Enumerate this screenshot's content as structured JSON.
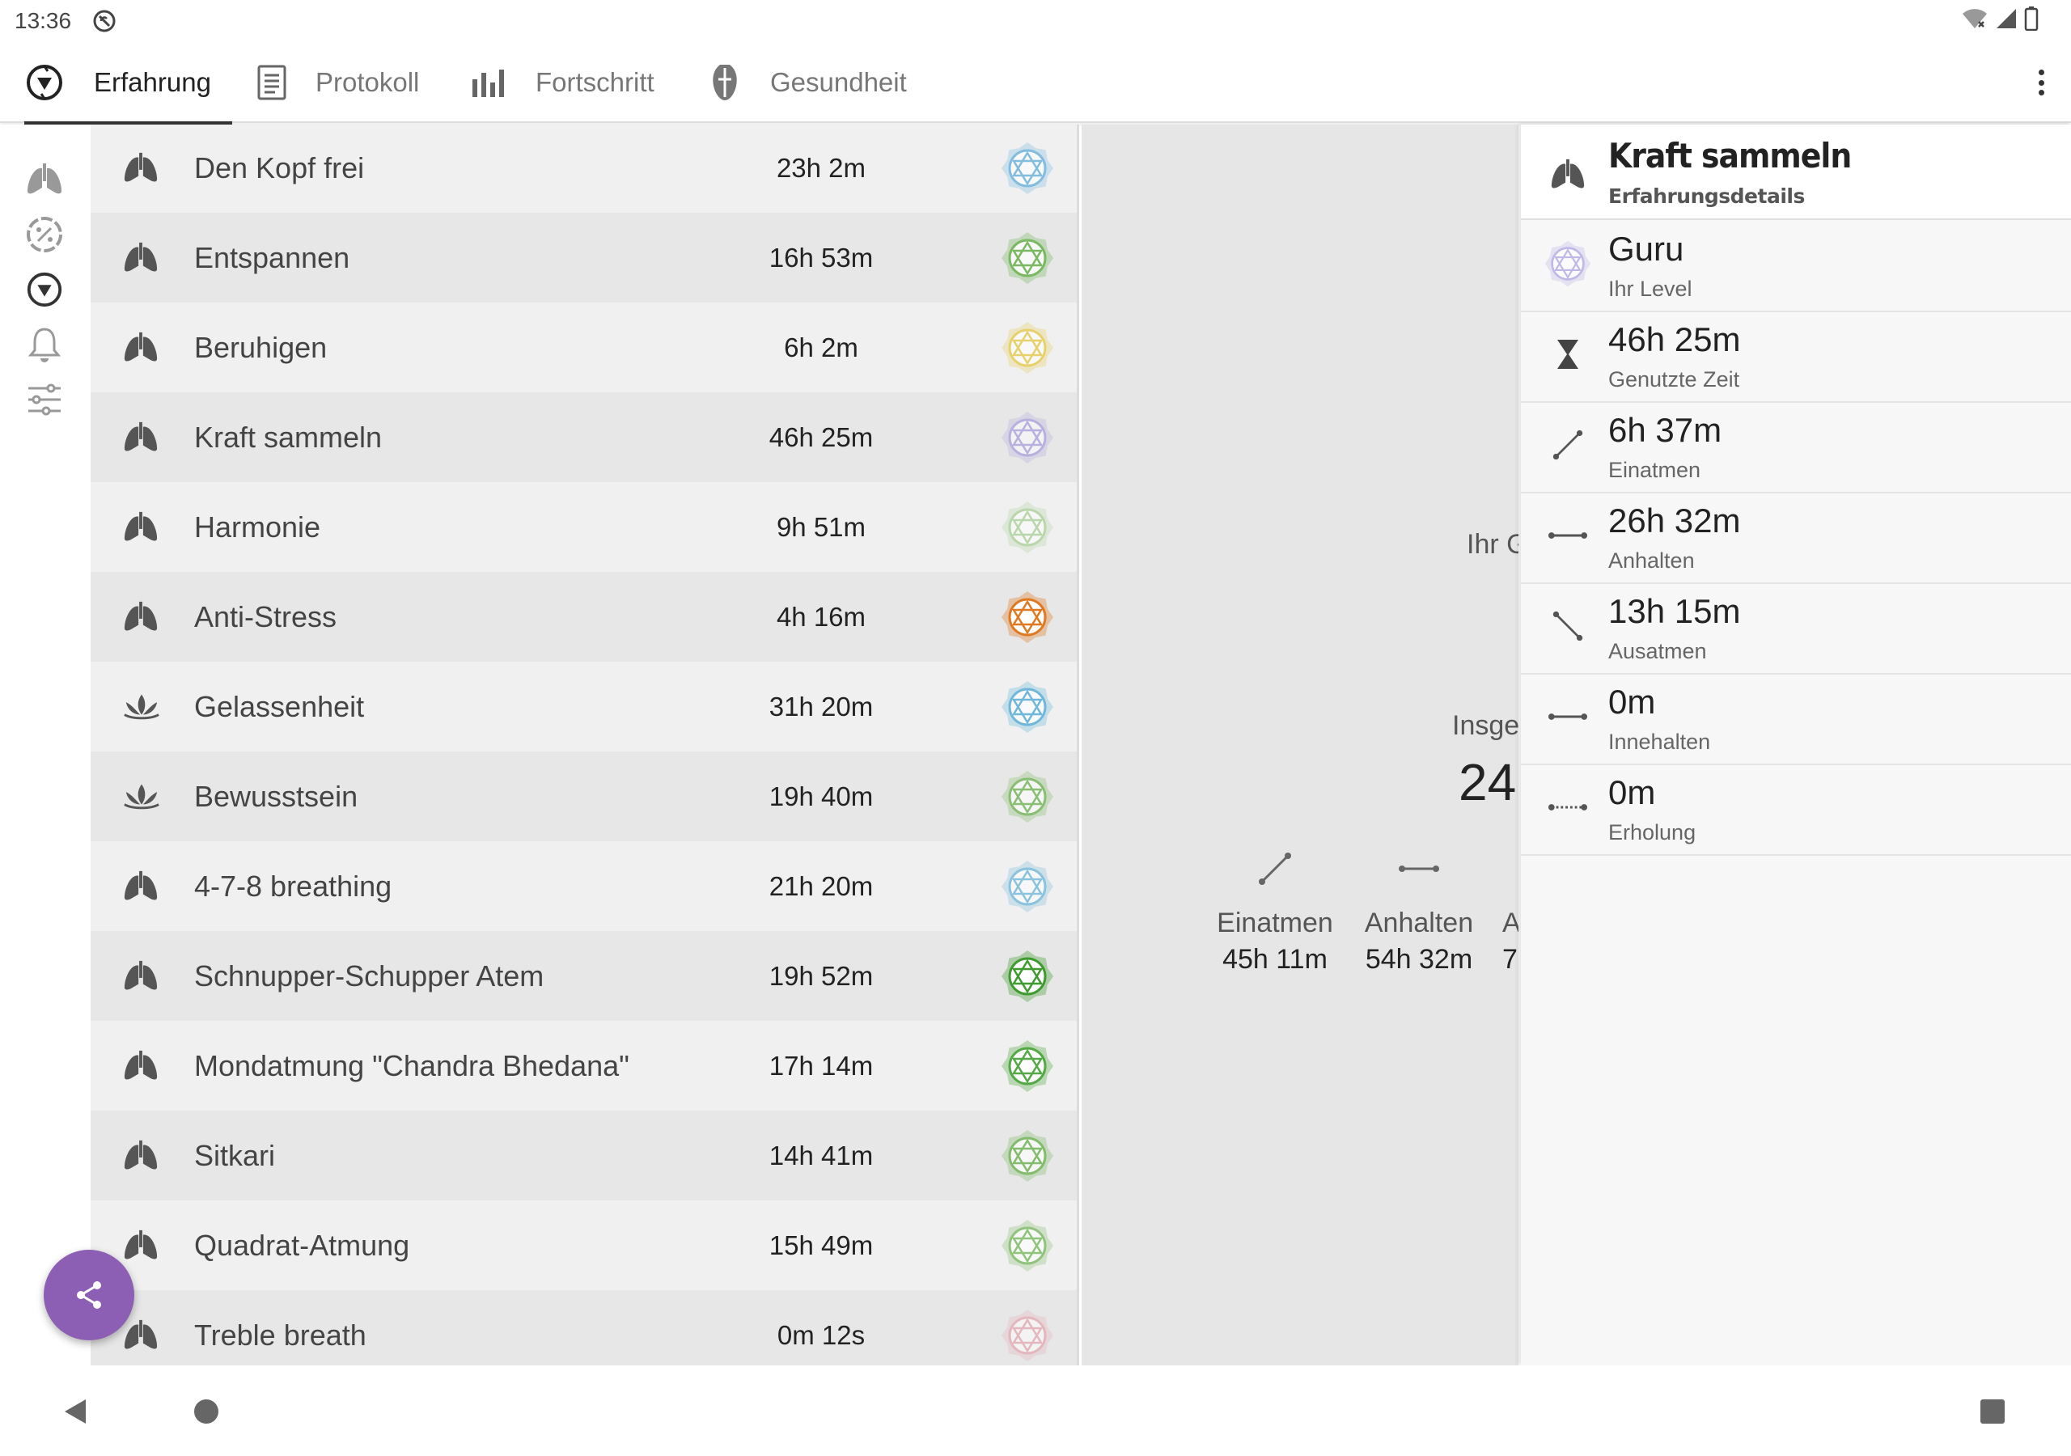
{
  "status": {
    "time": "13:36"
  },
  "tabs": [
    {
      "label": "Erfahrung",
      "icon": "chakra-target-icon",
      "active": true
    },
    {
      "label": "Protokoll",
      "icon": "list-icon",
      "active": false
    },
    {
      "label": "Fortschritt",
      "icon": "bar-chart-icon",
      "active": false
    },
    {
      "label": "Gesundheit",
      "icon": "health-icon",
      "active": false
    }
  ],
  "rail": [
    "lungs-icon",
    "percent-icon",
    "chakra-target-icon",
    "bell-icon",
    "sliders-icon"
  ],
  "list": [
    {
      "name": "Den Kopf frei",
      "duration": "23h 2m",
      "icon": "lungs-icon",
      "badge_color": "#4aa3d6",
      "badge_fill": 0.55
    },
    {
      "name": "Entspannen",
      "duration": "16h 53m",
      "icon": "lungs-icon",
      "badge_color": "#5aaa3a",
      "badge_fill": 0.7
    },
    {
      "name": "Beruhigen",
      "duration": "6h 2m",
      "icon": "lungs-icon",
      "badge_color": "#e2c020",
      "badge_fill": 0.5
    },
    {
      "name": "Kraft sammeln",
      "duration": "46h 25m",
      "icon": "lungs-icon",
      "badge_color": "#8d7cd8",
      "badge_fill": 0.35
    },
    {
      "name": "Harmonie",
      "duration": "9h 51m",
      "icon": "lungs-icon",
      "badge_color": "#7cba62",
      "badge_fill": 0.3
    },
    {
      "name": "Anti-Stress",
      "duration": "4h 16m",
      "icon": "lungs-icon",
      "badge_color": "#e07a22",
      "badge_fill": 1
    },
    {
      "name": "Gelassenheit",
      "duration": "31h 20m",
      "icon": "lotus-icon",
      "badge_color": "#3aa0d0",
      "badge_fill": 0.6
    },
    {
      "name": "Bewusstsein",
      "duration": "19h 40m",
      "icon": "lotus-icon",
      "badge_color": "#5aaa3a",
      "badge_fill": 0.55
    },
    {
      "name": "4-7-8 breathing",
      "duration": "21h 20m",
      "icon": "lungs-icon",
      "badge_color": "#3aa0d0",
      "badge_fill": 0.4
    },
    {
      "name": "Schnupper-Schupper Atem",
      "duration": "19h 52m",
      "icon": "lungs-icon",
      "badge_color": "#3f9a2f",
      "badge_fill": 1
    },
    {
      "name": "Mondatmung \"Chandra Bhedana\"",
      "duration": "17h 14m",
      "icon": "lungs-icon",
      "badge_color": "#4aa33a",
      "badge_fill": 0.9
    },
    {
      "name": "Sitkari",
      "duration": "14h 41m",
      "icon": "lungs-icon",
      "badge_color": "#5aaa3a",
      "badge_fill": 0.6
    },
    {
      "name": "Quadrat-Atmung",
      "duration": "15h 49m",
      "icon": "lungs-icon",
      "badge_color": "#5aaa3a",
      "badge_fill": 0.5
    },
    {
      "name": "Treble breath",
      "duration": "0m 12s",
      "icon": "lungs-icon",
      "badge_color": "#e08a95",
      "badge_fill": 0.35
    }
  ],
  "middle": {
    "partial_1": "Ihr G",
    "partial_2": "Insge",
    "partial_3": "24",
    "stats": [
      {
        "label": "Einatmen",
        "value": "45h 11m",
        "icon": "inhale-icon"
      },
      {
        "label": "Anhalten",
        "value": "54h 32m",
        "icon": "hold-icon"
      },
      {
        "label": "A",
        "value": "7",
        "icon": "exhale-icon"
      }
    ]
  },
  "details": {
    "title": "Kraft sammeln",
    "subtitle": "Erfahrungsdetails",
    "rows": [
      {
        "value": "Guru",
        "label": "Ihr Level",
        "icon": "chakra-badge-icon"
      },
      {
        "value": "46h 25m",
        "label": "Genutzte Zeit",
        "icon": "hourglass-icon"
      },
      {
        "value": "6h 37m",
        "label": "Einatmen",
        "icon": "inhale-icon"
      },
      {
        "value": "26h 32m",
        "label": "Anhalten",
        "icon": "hold-icon"
      },
      {
        "value": "13h 15m",
        "label": "Ausatmen",
        "icon": "exhale-icon"
      },
      {
        "value": "0m",
        "label": "Innehalten",
        "icon": "pause-icon"
      },
      {
        "value": "0m",
        "label": "Erholung",
        "icon": "recovery-icon"
      }
    ]
  },
  "colors": {
    "fab": "#8c5fb5",
    "accent": "#333333"
  }
}
